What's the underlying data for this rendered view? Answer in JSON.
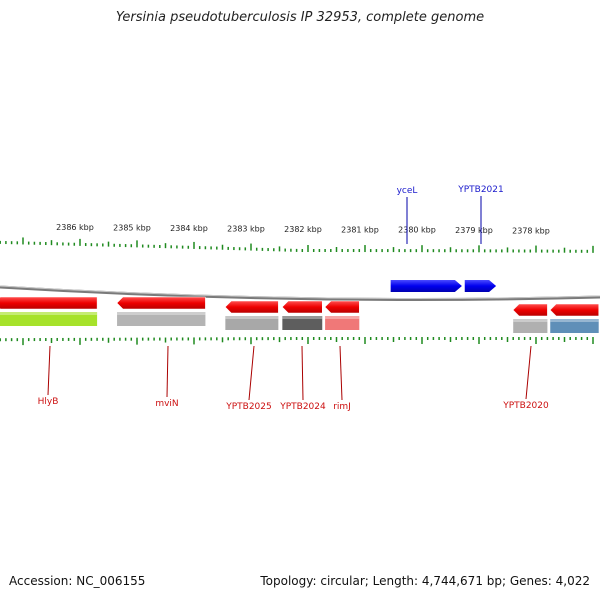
{
  "title": "Yersinia pseudotuberculosis IP 32953, complete genome",
  "accession_label": "Accession: NC_006155",
  "topology_label": "Topology: circular; Length: 4,744,671 bp; Genes: 4,022",
  "colors": {
    "forward_gene": "#1010ff",
    "reverse_gene": "#ff1010",
    "backbone": "#8a8a8a",
    "tick": "#1f8a1f",
    "forward_label": "#1a1acc",
    "reverse_label": "#cc1010"
  },
  "scale": {
    "unit": "kbp",
    "ticks": [
      {
        "kbp": 2386,
        "label": "2386 kbp"
      },
      {
        "kbp": 2385,
        "label": "2385 kbp"
      },
      {
        "kbp": 2384,
        "label": "2384 kbp"
      },
      {
        "kbp": 2383,
        "label": "2383 kbp"
      },
      {
        "kbp": 2382,
        "label": "2382 kbp"
      },
      {
        "kbp": 2381,
        "label": "2381 kbp"
      },
      {
        "kbp": 2380,
        "label": "2380 kbp"
      },
      {
        "kbp": 2379,
        "label": "2379 kbp"
      },
      {
        "kbp": 2378,
        "label": "2378 kbp"
      }
    ]
  },
  "forward_genes": [
    {
      "name": "yceL",
      "start_kbp": 2380.55,
      "end_kbp": 2379.3
    },
    {
      "name": "YPTB2021",
      "start_kbp": 2379.25,
      "end_kbp": 2378.7
    }
  ],
  "reverse_genes": [
    {
      "name": "HlyB",
      "start_kbp": 2387.5,
      "end_kbp": 2385.7,
      "track2": "#a6e22a"
    },
    {
      "name": "mviN",
      "start_kbp": 2385.35,
      "end_kbp": 2383.8,
      "track2": "#b4b4b4"
    },
    {
      "name": "YPTB2025",
      "start_kbp": 2383.45,
      "end_kbp": 2382.52,
      "track2": "#a8a8a8"
    },
    {
      "name": "YPTB2024",
      "start_kbp": 2382.45,
      "end_kbp": 2381.75,
      "track2": "#5e5e5e"
    },
    {
      "name": "rimJ",
      "start_kbp": 2381.7,
      "end_kbp": 2381.1,
      "track2": "#f07878"
    },
    {
      "name": "YPTB2020",
      "start_kbp": 2378.4,
      "end_kbp": 2377.8,
      "track2": "#b0b0b0"
    },
    {
      "name": "",
      "start_kbp": 2377.75,
      "end_kbp": 2376.9,
      "track2": "#5f8fb8"
    }
  ],
  "left_edge_fragments": [
    {
      "start_kbp": 2388.1,
      "end_kbp": 2387.55
    }
  ]
}
